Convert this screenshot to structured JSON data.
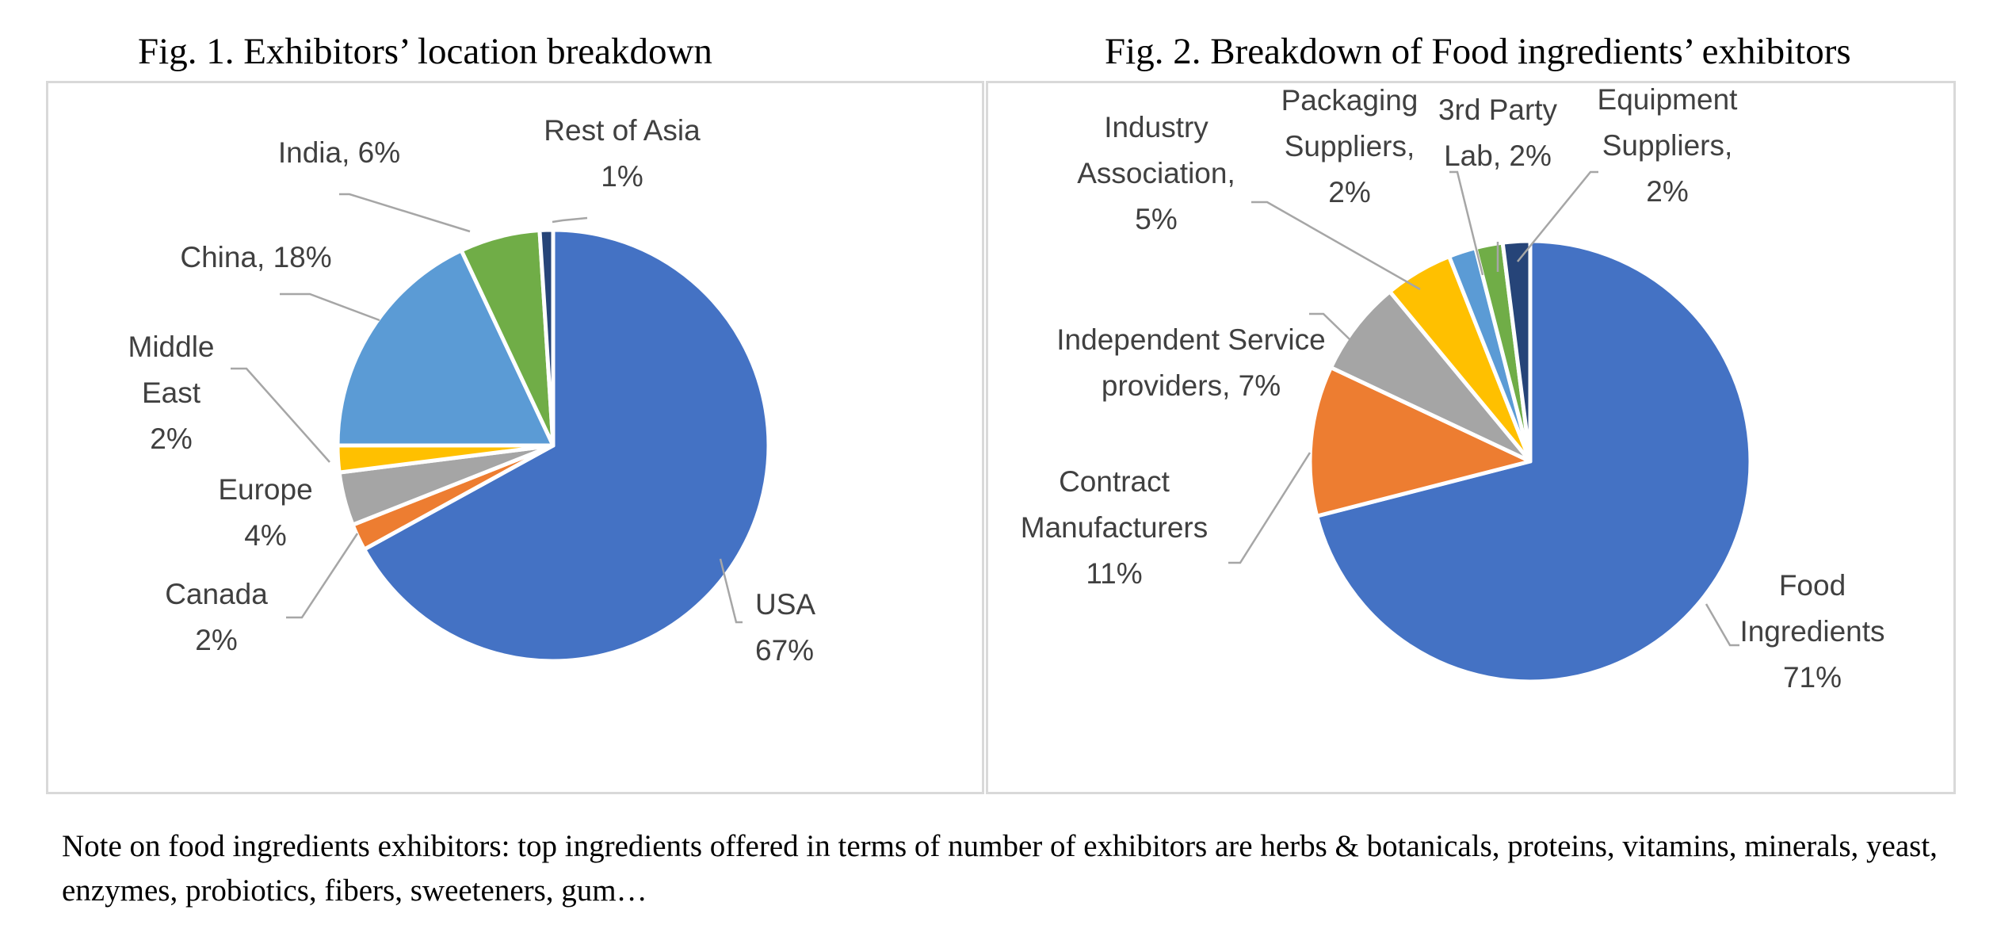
{
  "chart_data": [
    {
      "type": "pie",
      "title": "Fig. 1. Exhibitors’ location breakdown",
      "slices": [
        {
          "label": "USA",
          "value": 67,
          "display": [
            "USA",
            "67%"
          ],
          "color": "#4472C4"
        },
        {
          "label": "Canada",
          "value": 2,
          "display": [
            "Canada",
            "2%"
          ],
          "color": "#ED7D31"
        },
        {
          "label": "Europe",
          "value": 4,
          "display": [
            "Europe",
            "4%"
          ],
          "color": "#A5A5A5"
        },
        {
          "label": "Middle East",
          "value": 2,
          "display": [
            "Middle",
            "East",
            "2%"
          ],
          "color": "#FFC000"
        },
        {
          "label": "China",
          "value": 18,
          "display": [
            "China, 18%"
          ],
          "color": "#5B9BD5"
        },
        {
          "label": "India",
          "value": 6,
          "display": [
            "India, 6%"
          ],
          "color": "#70AD47"
        },
        {
          "label": "Rest of Asia",
          "value": 1,
          "display": [
            "Rest of Asia",
            "1%"
          ],
          "color": "#264478"
        }
      ]
    },
    {
      "type": "pie",
      "title": "Fig. 2. Breakdown of Food ingredients’ exhibitors",
      "slices": [
        {
          "label": "Food Ingredients",
          "value": 71,
          "display": [
            "Food",
            "Ingredients",
            "71%"
          ],
          "color": "#4472C4"
        },
        {
          "label": "Contract Manufacturers",
          "value": 11,
          "display": [
            "Contract",
            "Manufacturers",
            "11%"
          ],
          "color": "#ED7D31"
        },
        {
          "label": "Independent Service providers",
          "value": 7,
          "display": [
            "Independent Service",
            "providers, 7%"
          ],
          "color": "#A5A5A5"
        },
        {
          "label": "Industry Association",
          "value": 5,
          "display": [
            "Industry",
            "Association,",
            "5%"
          ],
          "color": "#FFC000"
        },
        {
          "label": "Packaging Suppliers",
          "value": 2,
          "display": [
            "Packaging",
            "Suppliers,",
            "2%"
          ],
          "color": "#5B9BD5"
        },
        {
          "label": "3rd Party Lab",
          "value": 2,
          "display": [
            "3rd Party",
            "Lab, 2%"
          ],
          "color": "#70AD47"
        },
        {
          "label": "Equipment Suppliers",
          "value": 2,
          "display": [
            "Equipment",
            "Suppliers,",
            "2%"
          ],
          "color": "#264478"
        }
      ]
    }
  ],
  "note": "Note on food ingredients exhibitors: top ingredients offered in terms of number of exhibitors are herbs & botanicals, proteins, vitamins, minerals, yeast, enzymes, probiotics, fibers, sweeteners, gum…"
}
